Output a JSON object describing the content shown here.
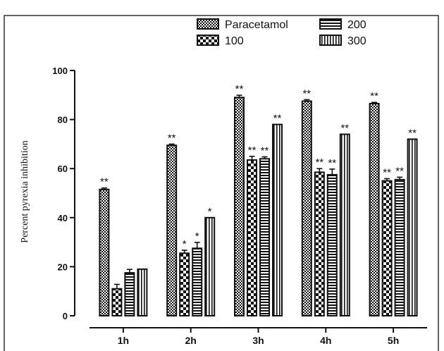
{
  "chart_data": {
    "type": "bar",
    "title": "",
    "xlabel": "",
    "ylabel": "Percent pyrexia inhibition",
    "ylim": [
      0,
      100
    ],
    "yticks": [
      "0",
      "20",
      "40",
      "60",
      "80",
      "100"
    ],
    "categories": [
      "1h",
      "2h",
      "3h",
      "4h",
      "5h"
    ],
    "legend_position": "top-right",
    "series": [
      {
        "name": "Paracetamol",
        "pattern": "dense-dots",
        "values": [
          51.5,
          69.5,
          89,
          87.5,
          86.5
        ],
        "errors": [
          0.6,
          0.5,
          0.9,
          0.6,
          0.5
        ],
        "significance": [
          "**",
          "**",
          "**",
          "**",
          "**"
        ]
      },
      {
        "name": "100",
        "pattern": "checker",
        "values": [
          11,
          25.5,
          63.5,
          58.5,
          55
        ],
        "errors": [
          1.8,
          1.2,
          1.5,
          1.5,
          0.9
        ],
        "significance": [
          "",
          "*",
          "**",
          "**",
          "**"
        ]
      },
      {
        "name": "200",
        "pattern": "horizontal-lines",
        "values": [
          17.5,
          27.5,
          64,
          57.5,
          55.5
        ],
        "errors": [
          1.4,
          2.4,
          0.8,
          2.3,
          1.0
        ],
        "significance": [
          "",
          "*",
          "**",
          "**",
          "**"
        ]
      },
      {
        "name": "300",
        "pattern": "vertical-lines",
        "values": [
          19,
          40,
          78,
          74,
          72
        ],
        "errors": [
          0,
          0,
          0,
          0,
          0
        ],
        "significance": [
          "",
          "*",
          "**",
          "**",
          "**"
        ]
      }
    ]
  }
}
